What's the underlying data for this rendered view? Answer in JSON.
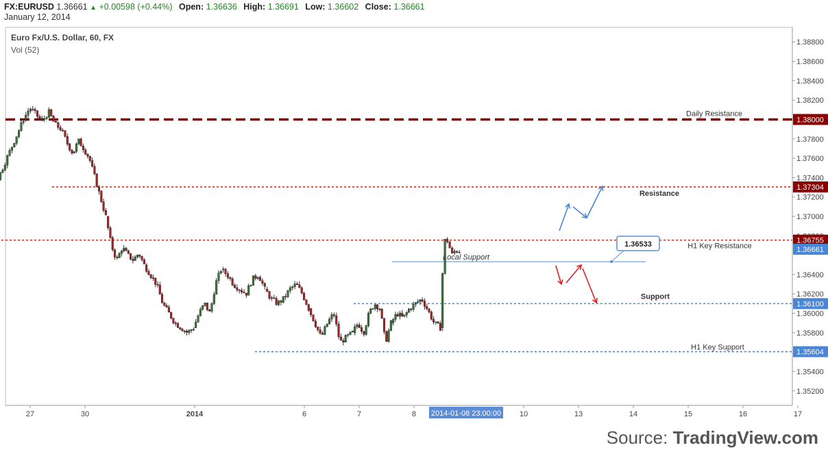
{
  "header": {
    "symbol": "FX:EURUSD",
    "price": "1.36661",
    "change": "+0.00598 (+0.44%)",
    "open_label": "Open:",
    "open": "1.36636",
    "high_label": "High:",
    "high": "1.36691",
    "low_label": "Low:",
    "low": "1.36602",
    "close_label": "Close:",
    "close": "1.36661",
    "date": "January 12, 2014"
  },
  "legend": {
    "title": "Euro Fx/U.S. Dollar, 60, FX",
    "vol": "Vol (52)"
  },
  "source": {
    "prefix": "Source: ",
    "brand": "TradingView.com"
  },
  "chart_data": {
    "type": "candlestick",
    "ylim": [
      1.3505,
      1.3895
    ],
    "y_ticks": [
      "1.38800",
      "1.38600",
      "1.38400",
      "1.38200",
      "1.37800",
      "1.37600",
      "1.37400",
      "1.37200",
      "1.37000",
      "1.36800",
      "1.36400",
      "1.36200",
      "1.36000",
      "1.35800",
      "1.35400",
      "1.35200"
    ],
    "x_ticks": [
      "27",
      "30",
      "2014",
      "6",
      "7",
      "8",
      "10",
      "13",
      "14",
      "15",
      "16",
      "17"
    ],
    "x_tick_positions": [
      -1.0,
      0.0,
      2.0,
      4.0,
      5.0,
      6.0,
      8.0,
      9.0,
      10.0,
      11.0,
      12.0,
      13.0
    ],
    "x_cursor_label": "2014-01-08 23:00:00",
    "x_cursor_pos": 7.0,
    "price_tags": [
      {
        "label": "1.38000",
        "value": 1.38,
        "color": "#8b0000"
      },
      {
        "label": "1.37304",
        "value": 1.37304,
        "color": "#8b0000"
      },
      {
        "label": "1.36755",
        "value": 1.36755,
        "color": "#8b0000"
      },
      {
        "label": "1.36661",
        "value": 1.36661,
        "color": "#4a86d6"
      },
      {
        "label": "1.36100",
        "value": 1.361,
        "color": "#4a86d6"
      },
      {
        "label": "1.35604",
        "value": 1.35604,
        "color": "#4a86d6"
      }
    ],
    "levels": [
      {
        "name": "Daily Resistance",
        "value": 1.38,
        "style": "thick-dashed",
        "color": "#8b0000",
        "x_start": -3.4
      },
      {
        "name": "Resistance",
        "value": 1.37304,
        "style": "dotted",
        "color": "#c0392b",
        "x_start": -0.6
      },
      {
        "name": "H1 Key Resistance",
        "value": 1.36755,
        "style": "dotted",
        "color": "#c0392b",
        "x_start": -3.4
      },
      {
        "name": "Local Support",
        "value": 1.36533,
        "style": "solid",
        "color": "#5b8dd6",
        "x_start": 5.6
      },
      {
        "name": "Support",
        "value": 1.361,
        "style": "dotted",
        "color": "#4a86d6",
        "x_start": 4.9
      },
      {
        "name": "H1 Key Support",
        "value": 1.35604,
        "style": "dotted",
        "color": "#4a86d6",
        "x_start": 3.1
      }
    ],
    "callout": {
      "label": "1.36533",
      "value": 1.36533,
      "x": 10.0
    },
    "candles": {
      "segments": [
        {
          "x0": -3.4,
          "x1": -2.6,
          "v": [
            1.3675,
            1.369,
            1.3688,
            1.3702,
            1.3735,
            1.376,
            1.379,
            1.38
          ]
        },
        {
          "x0": -2.6,
          "x1": -1.9,
          "v": [
            1.38,
            1.386,
            1.3855,
            1.38,
            1.378,
            1.376,
            1.374,
            1.3745,
            1.375
          ]
        },
        {
          "x0": -1.9,
          "x1": -1.1,
          "v": [
            1.375,
            1.3735,
            1.3745,
            1.374,
            1.3755,
            1.377,
            1.3785,
            1.38
          ]
        },
        {
          "x0": -1.1,
          "x1": -0.3,
          "v": [
            1.38,
            1.3812,
            1.3805,
            1.3798,
            1.3808,
            1.3795,
            1.379,
            1.3775
          ]
        },
        {
          "x0": -0.3,
          "x1": 0.4,
          "v": [
            1.3775,
            1.3765,
            1.3778,
            1.377,
            1.376,
            1.374,
            1.372,
            1.37
          ]
        },
        {
          "x0": 0.4,
          "x1": 1.1,
          "v": [
            1.37,
            1.367,
            1.3655,
            1.3668,
            1.366,
            1.3655,
            1.3662,
            1.365
          ]
        },
        {
          "x0": 1.1,
          "x1": 2.0,
          "v": [
            1.365,
            1.364,
            1.363,
            1.361,
            1.36,
            1.359,
            1.3585,
            1.358,
            1.3585
          ]
        },
        {
          "x0": 2.0,
          "x1": 2.5,
          "v": [
            1.3585,
            1.36,
            1.361,
            1.36,
            1.363,
            1.3645
          ]
        },
        {
          "x0": 2.5,
          "x1": 3.3,
          "v": [
            1.3645,
            1.364,
            1.363,
            1.3625,
            1.362,
            1.3635,
            1.364,
            1.3625
          ]
        },
        {
          "x0": 3.3,
          "x1": 4.1,
          "v": [
            1.3625,
            1.3615,
            1.361,
            1.3615,
            1.3625,
            1.363,
            1.362,
            1.3605
          ]
        },
        {
          "x0": 4.1,
          "x1": 4.9,
          "v": [
            1.3605,
            1.359,
            1.3575,
            1.359,
            1.36,
            1.357,
            1.3575,
            1.358
          ]
        },
        {
          "x0": 4.9,
          "x1": 5.6,
          "v": [
            1.358,
            1.359,
            1.358,
            1.36,
            1.361,
            1.3605,
            1.357,
            1.359
          ]
        },
        {
          "x0": 5.6,
          "x1": 6.5,
          "v": [
            1.359,
            1.36,
            1.3595,
            1.3605,
            1.361,
            1.3615,
            1.3603,
            1.359,
            1.3585
          ]
        },
        {
          "x0": 6.5,
          "x1": 6.85,
          "v": [
            1.3585,
            1.3675,
            1.3675,
            1.366,
            1.3665,
            1.3664
          ]
        }
      ]
    }
  },
  "annotations": {
    "daily_resistance": "Daily Resistance",
    "resistance": "Resistance",
    "h1_key_resistance": "H1 Key Resistance",
    "local_support": "Local Support",
    "support": "Support",
    "h1_key_support": "H1 Key Support"
  },
  "colors": {
    "bull": "#3a7a3a",
    "bear": "#b22222",
    "up_arrow": "#4a86d6",
    "down_arrow": "#e02020"
  }
}
